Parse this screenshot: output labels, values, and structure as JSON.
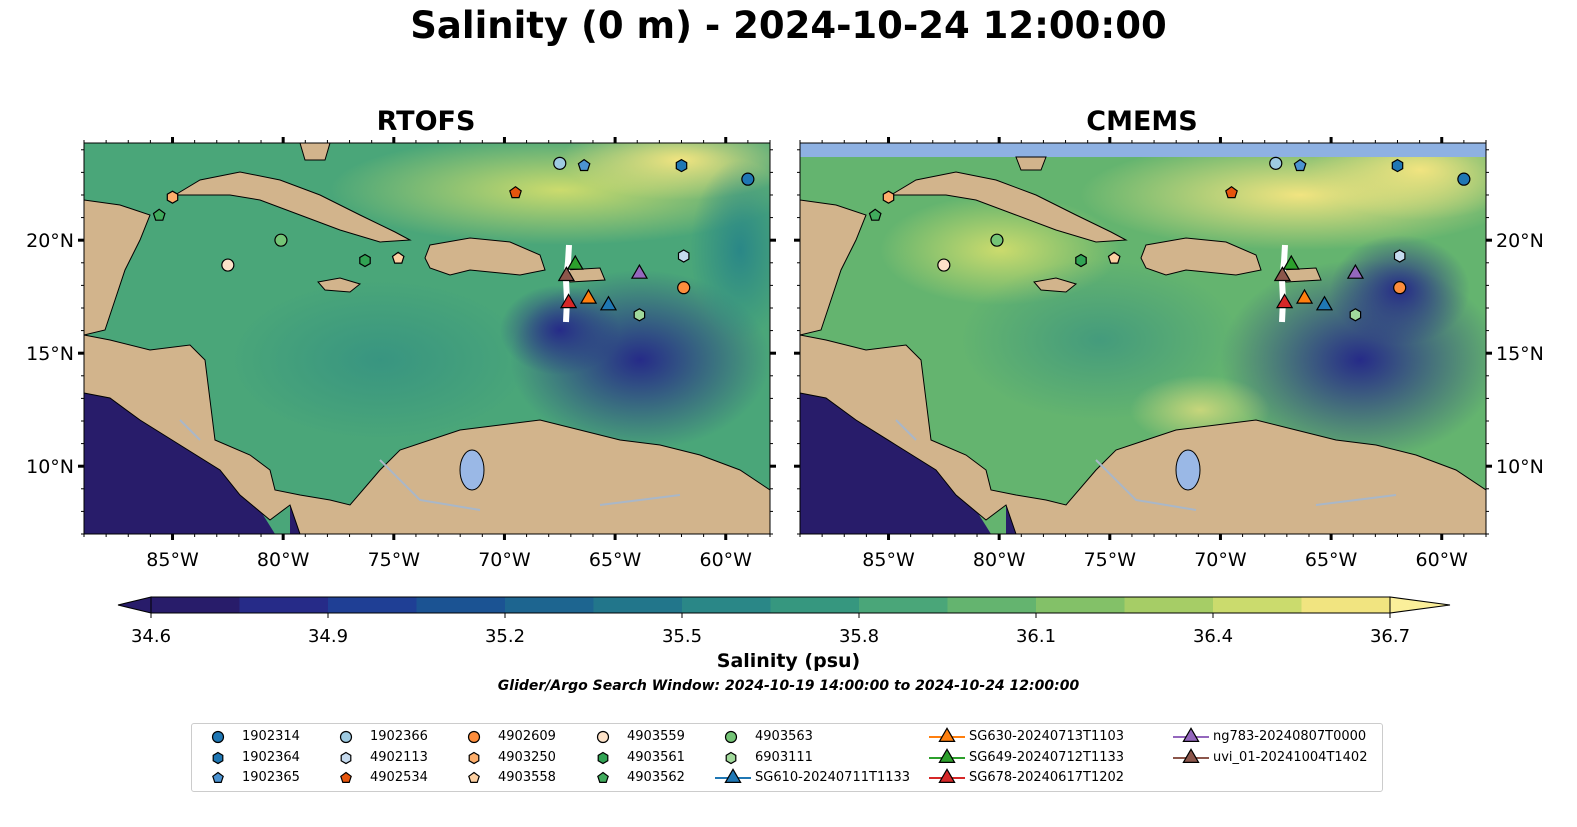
{
  "title": "Salinity (0 m) - 2024-10-24 12:00:00",
  "panels": [
    {
      "title": "RTOFS",
      "model": "rtofs"
    },
    {
      "title": "CMEMS",
      "model": "cmems"
    }
  ],
  "colorbar": {
    "label": "Salinity (psu)",
    "range": [
      34.6,
      36.7
    ],
    "ticks": [
      "34.6",
      "34.9",
      "35.2",
      "35.5",
      "35.8",
      "36.1",
      "36.4",
      "36.7"
    ],
    "colormap": [
      "#281c6a",
      "#262b88",
      "#1f3f95",
      "#1b5393",
      "#1d6590",
      "#22768b",
      "#2a8787",
      "#36977f",
      "#4aa679",
      "#64b46f",
      "#83c168",
      "#a6cd66",
      "#cbdb6d",
      "#f1e480"
    ]
  },
  "search_window": "Glider/Argo Search Window: 2024-10-19 14:00:00 to 2024-10-24 12:00:00",
  "chart_data": {
    "type": "heatmap",
    "xlim": [
      -89,
      -58
    ],
    "ylim": [
      7,
      24.3
    ],
    "x_ticks": [
      "85°W",
      "80°W",
      "75°W",
      "70°W",
      "65°W",
      "60°W"
    ],
    "x_tick_values": [
      -85,
      -80,
      -75,
      -70,
      -65,
      -60
    ],
    "y_ticks": [
      "10°N",
      "15°N",
      "20°N"
    ],
    "y_tick_values": [
      10,
      15,
      20
    ],
    "argo_floats": [
      {
        "name": "1902314",
        "lon": -59,
        "lat": 22.7,
        "marker": "circle",
        "color": "#1f77b4"
      },
      {
        "name": "1902364",
        "lon": -62,
        "lat": 23.3,
        "marker": "hexagon",
        "color": "#1f77b4"
      },
      {
        "name": "1902365",
        "lon": -66.4,
        "lat": 23.3,
        "marker": "pentagon",
        "color": "#4c93d1"
      },
      {
        "name": "1902366",
        "lon": -67.5,
        "lat": 23.4,
        "marker": "circle",
        "color": "#9ecae1"
      },
      {
        "name": "4902113",
        "lon": -61.9,
        "lat": 19.3,
        "marker": "hexagon",
        "color": "#c6dbef"
      },
      {
        "name": "4902534",
        "lon": -69.5,
        "lat": 22.1,
        "marker": "pentagon",
        "color": "#e6550d"
      },
      {
        "name": "4902609",
        "lon": -61.9,
        "lat": 17.9,
        "marker": "circle",
        "color": "#fd8d3c"
      },
      {
        "name": "4903250",
        "lon": -85,
        "lat": 21.9,
        "marker": "hexagon",
        "color": "#fdae6b"
      },
      {
        "name": "4903558",
        "lon": -74.8,
        "lat": 19.2,
        "marker": "pentagon",
        "color": "#fdd0a2"
      },
      {
        "name": "4903559",
        "lon": -82.5,
        "lat": 18.9,
        "marker": "circle",
        "color": "#fde2c8"
      },
      {
        "name": "4903561",
        "lon": -76.3,
        "lat": 19.1,
        "marker": "hexagon",
        "color": "#31a354"
      },
      {
        "name": "4903562",
        "lon": -85.6,
        "lat": 21.1,
        "marker": "pentagon",
        "color": "#41ab5d"
      },
      {
        "name": "4903563",
        "lon": -80.1,
        "lat": 20,
        "marker": "circle",
        "color": "#74c476"
      },
      {
        "name": "6903111",
        "lon": -63.9,
        "lat": 16.7,
        "marker": "hexagon",
        "color": "#a1d99b"
      }
    ],
    "gliders": [
      {
        "name": "SG610-20240711T1133",
        "lon": -65.3,
        "lat": 17.2,
        "color": "#1f77b4"
      },
      {
        "name": "SG630-20240713T1103",
        "lon": -66.2,
        "lat": 17.5,
        "color": "#ff7f0e"
      },
      {
        "name": "SG649-20240712T1133",
        "lon": -66.8,
        "lat": 19,
        "color": "#2ca02c"
      },
      {
        "name": "SG678-20240617T1202",
        "lon": -67.1,
        "lat": 17.3,
        "color": "#d62728"
      },
      {
        "name": "ng783-20240807T0000",
        "lon": -63.9,
        "lat": 18.6,
        "color": "#9467bd"
      },
      {
        "name": "uvi_01-20241004T1402",
        "lon": -67.2,
        "lat": 18.5,
        "color": "#8c564b"
      }
    ]
  },
  "legend_columns": [
    [
      {
        "label": "1902314",
        "ref": "1902314"
      },
      {
        "label": "1902364",
        "ref": "1902364"
      },
      {
        "label": "1902365",
        "ref": "1902365"
      }
    ],
    [
      {
        "label": "1902366",
        "ref": "1902366"
      },
      {
        "label": "4902113",
        "ref": "4902113"
      },
      {
        "label": "4902534",
        "ref": "4902534"
      }
    ],
    [
      {
        "label": "4902609",
        "ref": "4902609"
      },
      {
        "label": "4903250",
        "ref": "4903250"
      },
      {
        "label": "4903558",
        "ref": "4903558"
      }
    ],
    [
      {
        "label": "4903559",
        "ref": "4903559"
      },
      {
        "label": "4903561",
        "ref": "4903561"
      },
      {
        "label": "4903562",
        "ref": "4903562"
      }
    ],
    [
      {
        "label": "4903563",
        "ref": "4903563"
      },
      {
        "label": "6903111",
        "ref": "6903111"
      },
      {
        "label": "SG610-20240711T1133",
        "ref": "SG610-20240711T1133"
      }
    ],
    [
      {
        "label": "SG630-20240713T1103",
        "ref": "SG630-20240713T1103"
      },
      {
        "label": "SG649-20240712T1133",
        "ref": "SG649-20240712T1133"
      },
      {
        "label": "SG678-20240617T1202",
        "ref": "SG678-20240617T1202"
      }
    ],
    [
      {
        "label": "ng783-20240807T0000",
        "ref": "ng783-20240807T0000"
      },
      {
        "label": "uvi_01-20241004T1402",
        "ref": "uvi_01-20241004T1402"
      }
    ]
  ],
  "colors": {
    "land": "#d2b48c",
    "lakes": "#9ab8e6",
    "no_data": "#8eb1e2"
  }
}
